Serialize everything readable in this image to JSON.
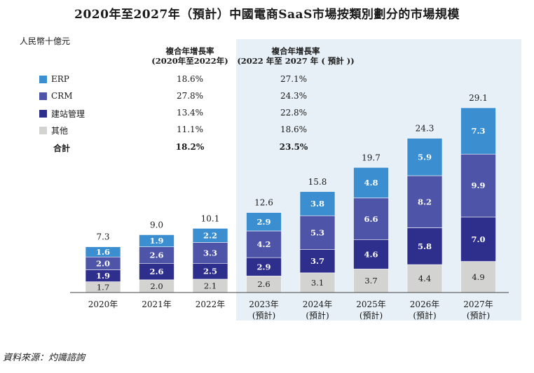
{
  "title": "2020年至2027年（預計）中國電商SaaS市場按類別劃分的市場規模",
  "unit_label": "人民幣十億元",
  "cagr_headers": {
    "historical_line1": "複合年增長率",
    "historical_line2": "(2020年至2022年)",
    "forecast_line1": "複合年增長率",
    "forecast_line2": "(2022 年至 2027 年 ( 預計 ))"
  },
  "legend": [
    {
      "label": "ERP",
      "color": "#3b8fd0",
      "cagr_hist": "18.6%",
      "cagr_fore": "27.1%"
    },
    {
      "label": "CRM",
      "color": "#4e55a8",
      "cagr_hist": "27.8%",
      "cagr_fore": "24.3%"
    },
    {
      "label": "建站管理",
      "color": "#2e2e8c",
      "cagr_hist": "13.4%",
      "cagr_fore": "22.8%"
    },
    {
      "label": "其他",
      "color": "#d3d3d1",
      "cagr_hist": "11.1%",
      "cagr_fore": "18.6%"
    }
  ],
  "total_row": {
    "label": "合計",
    "cagr_hist": "18.2%",
    "cagr_fore": "23.5%"
  },
  "source": "資料來源：灼識諮詢",
  "chart_data": {
    "type": "bar",
    "stacked": true,
    "title": "2020年至2027年（預計）中國電商SaaS市場按類別劃分的市場規模",
    "ylabel": "人民幣十億元",
    "categories": [
      {
        "line1": "2020年",
        "line2": ""
      },
      {
        "line1": "2021年",
        "line2": ""
      },
      {
        "line1": "2022年",
        "line2": ""
      },
      {
        "line1": "2023年",
        "line2": "(預計)"
      },
      {
        "line1": "2024年",
        "line2": "(預計)"
      },
      {
        "line1": "2025年",
        "line2": "(預計)"
      },
      {
        "line1": "2026年",
        "line2": "(預計)"
      },
      {
        "line1": "2027年",
        "line2": "(預計)"
      }
    ],
    "series": [
      {
        "name": "其他",
        "color": "#d3d3d1",
        "text_color": "#1a1a1a",
        "values": [
          1.7,
          2.0,
          2.1,
          2.6,
          3.1,
          3.7,
          4.4,
          4.9
        ]
      },
      {
        "name": "建站管理",
        "color": "#2e2e8c",
        "text_color": "#ffffff",
        "values": [
          1.9,
          2.6,
          2.5,
          2.9,
          3.7,
          4.6,
          5.8,
          7.0
        ]
      },
      {
        "name": "CRM",
        "color": "#4e55a8",
        "text_color": "#ffffff",
        "values": [
          2.0,
          2.6,
          3.3,
          4.2,
          5.3,
          6.6,
          8.2,
          9.9
        ]
      },
      {
        "name": "ERP",
        "color": "#3b8fd0",
        "text_color": "#ffffff",
        "values": [
          1.6,
          1.9,
          2.2,
          2.9,
          3.8,
          4.8,
          5.9,
          7.3
        ]
      }
    ],
    "totals": [
      7.3,
      9.0,
      10.1,
      12.6,
      15.8,
      19.7,
      24.3,
      29.1
    ],
    "ylim": [
      0,
      29.1
    ]
  }
}
